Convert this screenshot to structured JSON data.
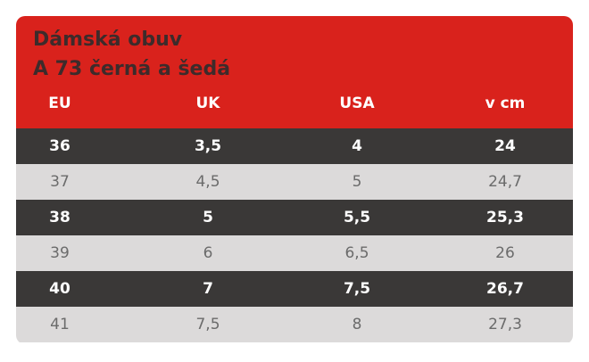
{
  "title": {
    "line1": "Dámská obuv",
    "line2": "A 73 černá a šedá"
  },
  "columns": [
    "EU",
    "UK",
    "USA",
    "v cm"
  ],
  "rows": [
    [
      "36",
      "3,5",
      "4",
      "24"
    ],
    [
      "37",
      "4,5",
      "5",
      "24,7"
    ],
    [
      "38",
      "5",
      "5,5",
      "25,3"
    ],
    [
      "39",
      "6",
      "6,5",
      "26"
    ],
    [
      "40",
      "7",
      "7,5",
      "26,7"
    ],
    [
      "41",
      "7,5",
      "8",
      "27,3"
    ]
  ],
  "colors": {
    "header_red": "#d9221c",
    "title_text": "#3d2b2b",
    "dark_row": "#3a3837",
    "light_row": "#dcdada",
    "light_row_text": "#6b6b6b"
  }
}
